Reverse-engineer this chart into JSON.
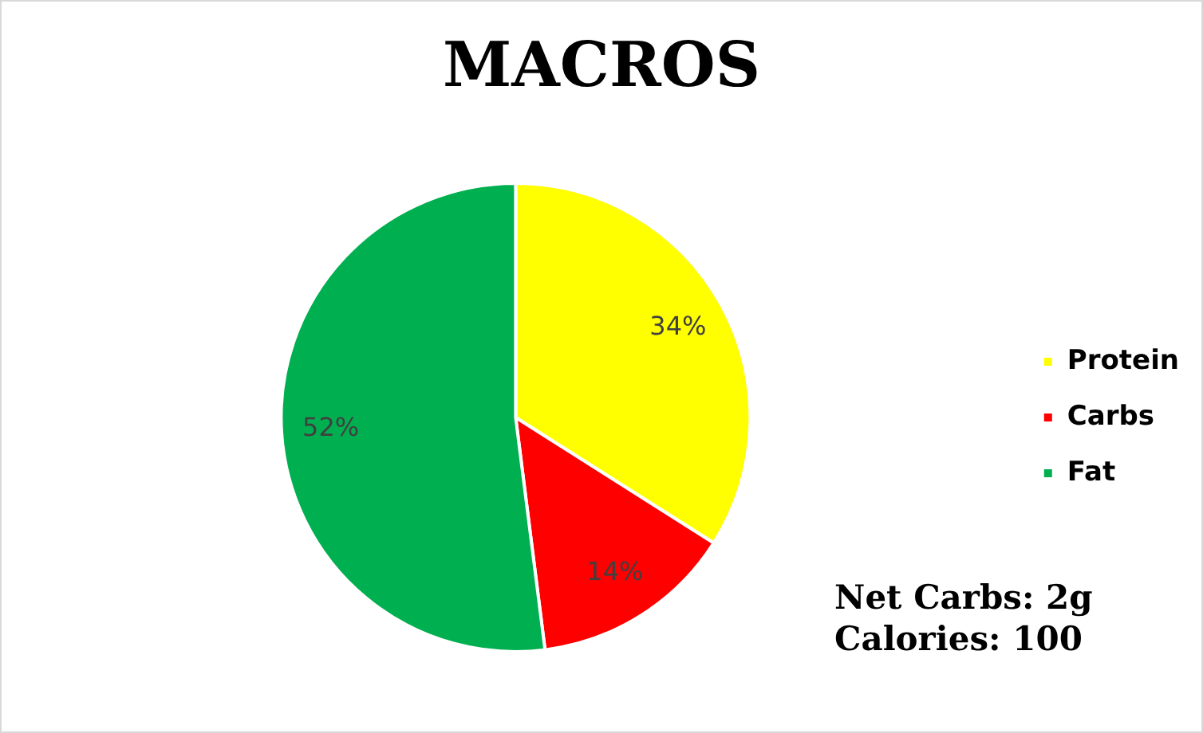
{
  "chart_data": {
    "type": "pie",
    "title": "MACROS",
    "categories": [
      "Protein",
      "Carbs",
      "Fat"
    ],
    "values": [
      34,
      14,
      52
    ],
    "colors": [
      "#ffff00",
      "#ff0000",
      "#00b050"
    ],
    "value_labels": [
      "34%",
      "14%",
      "52%"
    ],
    "legend": "right",
    "annotations": [
      "Net Carbs: 2g",
      "Calories: 100"
    ]
  }
}
